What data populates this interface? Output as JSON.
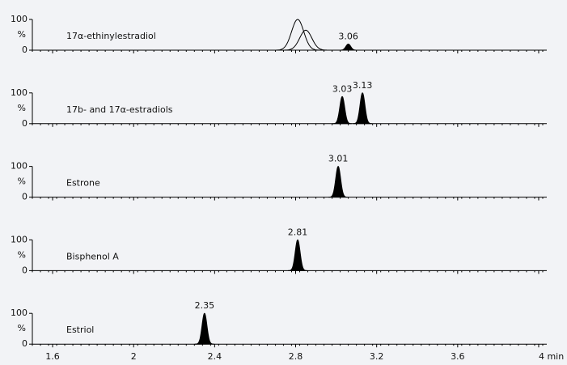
{
  "x_axis": {
    "xlim": [
      1.5,
      4.04
    ],
    "xticks": [
      1.6,
      2,
      2.4,
      2.8,
      3.2,
      3.6,
      {
        "value": 4,
        "label": "4 min"
      }
    ]
  },
  "chart_data": [
    {
      "type": "chromatogram",
      "title": "17α-ethinylestradiol",
      "ylabel": "%",
      "ylim": [
        0,
        100
      ],
      "yticks": [
        0,
        100
      ],
      "peaks": [
        {
          "x": 2.81,
          "y": 100,
          "filled": false,
          "labeled": false
        },
        {
          "x": 2.85,
          "y": 65,
          "filled": false,
          "labeled": false
        },
        {
          "x": 3.06,
          "y": 20,
          "filled": true,
          "labeled": true
        }
      ]
    },
    {
      "type": "chromatogram",
      "title": "17b- and 17α-estradiols",
      "ylabel": "%",
      "ylim": [
        0,
        100
      ],
      "yticks": [
        0,
        100
      ],
      "peaks": [
        {
          "x": 3.03,
          "y": 88,
          "filled": true,
          "labeled": true
        },
        {
          "x": 3.13,
          "y": 100,
          "filled": true,
          "labeled": true
        }
      ]
    },
    {
      "type": "chromatogram",
      "title": "Estrone",
      "ylabel": "%",
      "ylim": [
        0,
        100
      ],
      "yticks": [
        0,
        100
      ],
      "peaks": [
        {
          "x": 3.01,
          "y": 100,
          "filled": true,
          "labeled": true
        }
      ]
    },
    {
      "type": "chromatogram",
      "title": "Bisphenol A",
      "ylabel": "%",
      "ylim": [
        0,
        100
      ],
      "yticks": [
        0,
        100
      ],
      "peaks": [
        {
          "x": 2.81,
          "y": 100,
          "filled": true,
          "labeled": true
        }
      ]
    },
    {
      "type": "chromatogram",
      "title": "Estriol",
      "ylabel": "%",
      "ylim": [
        0,
        100
      ],
      "yticks": [
        0,
        100
      ],
      "peaks": [
        {
          "x": 2.35,
          "y": 100,
          "filled": true,
          "labeled": true
        }
      ]
    }
  ]
}
